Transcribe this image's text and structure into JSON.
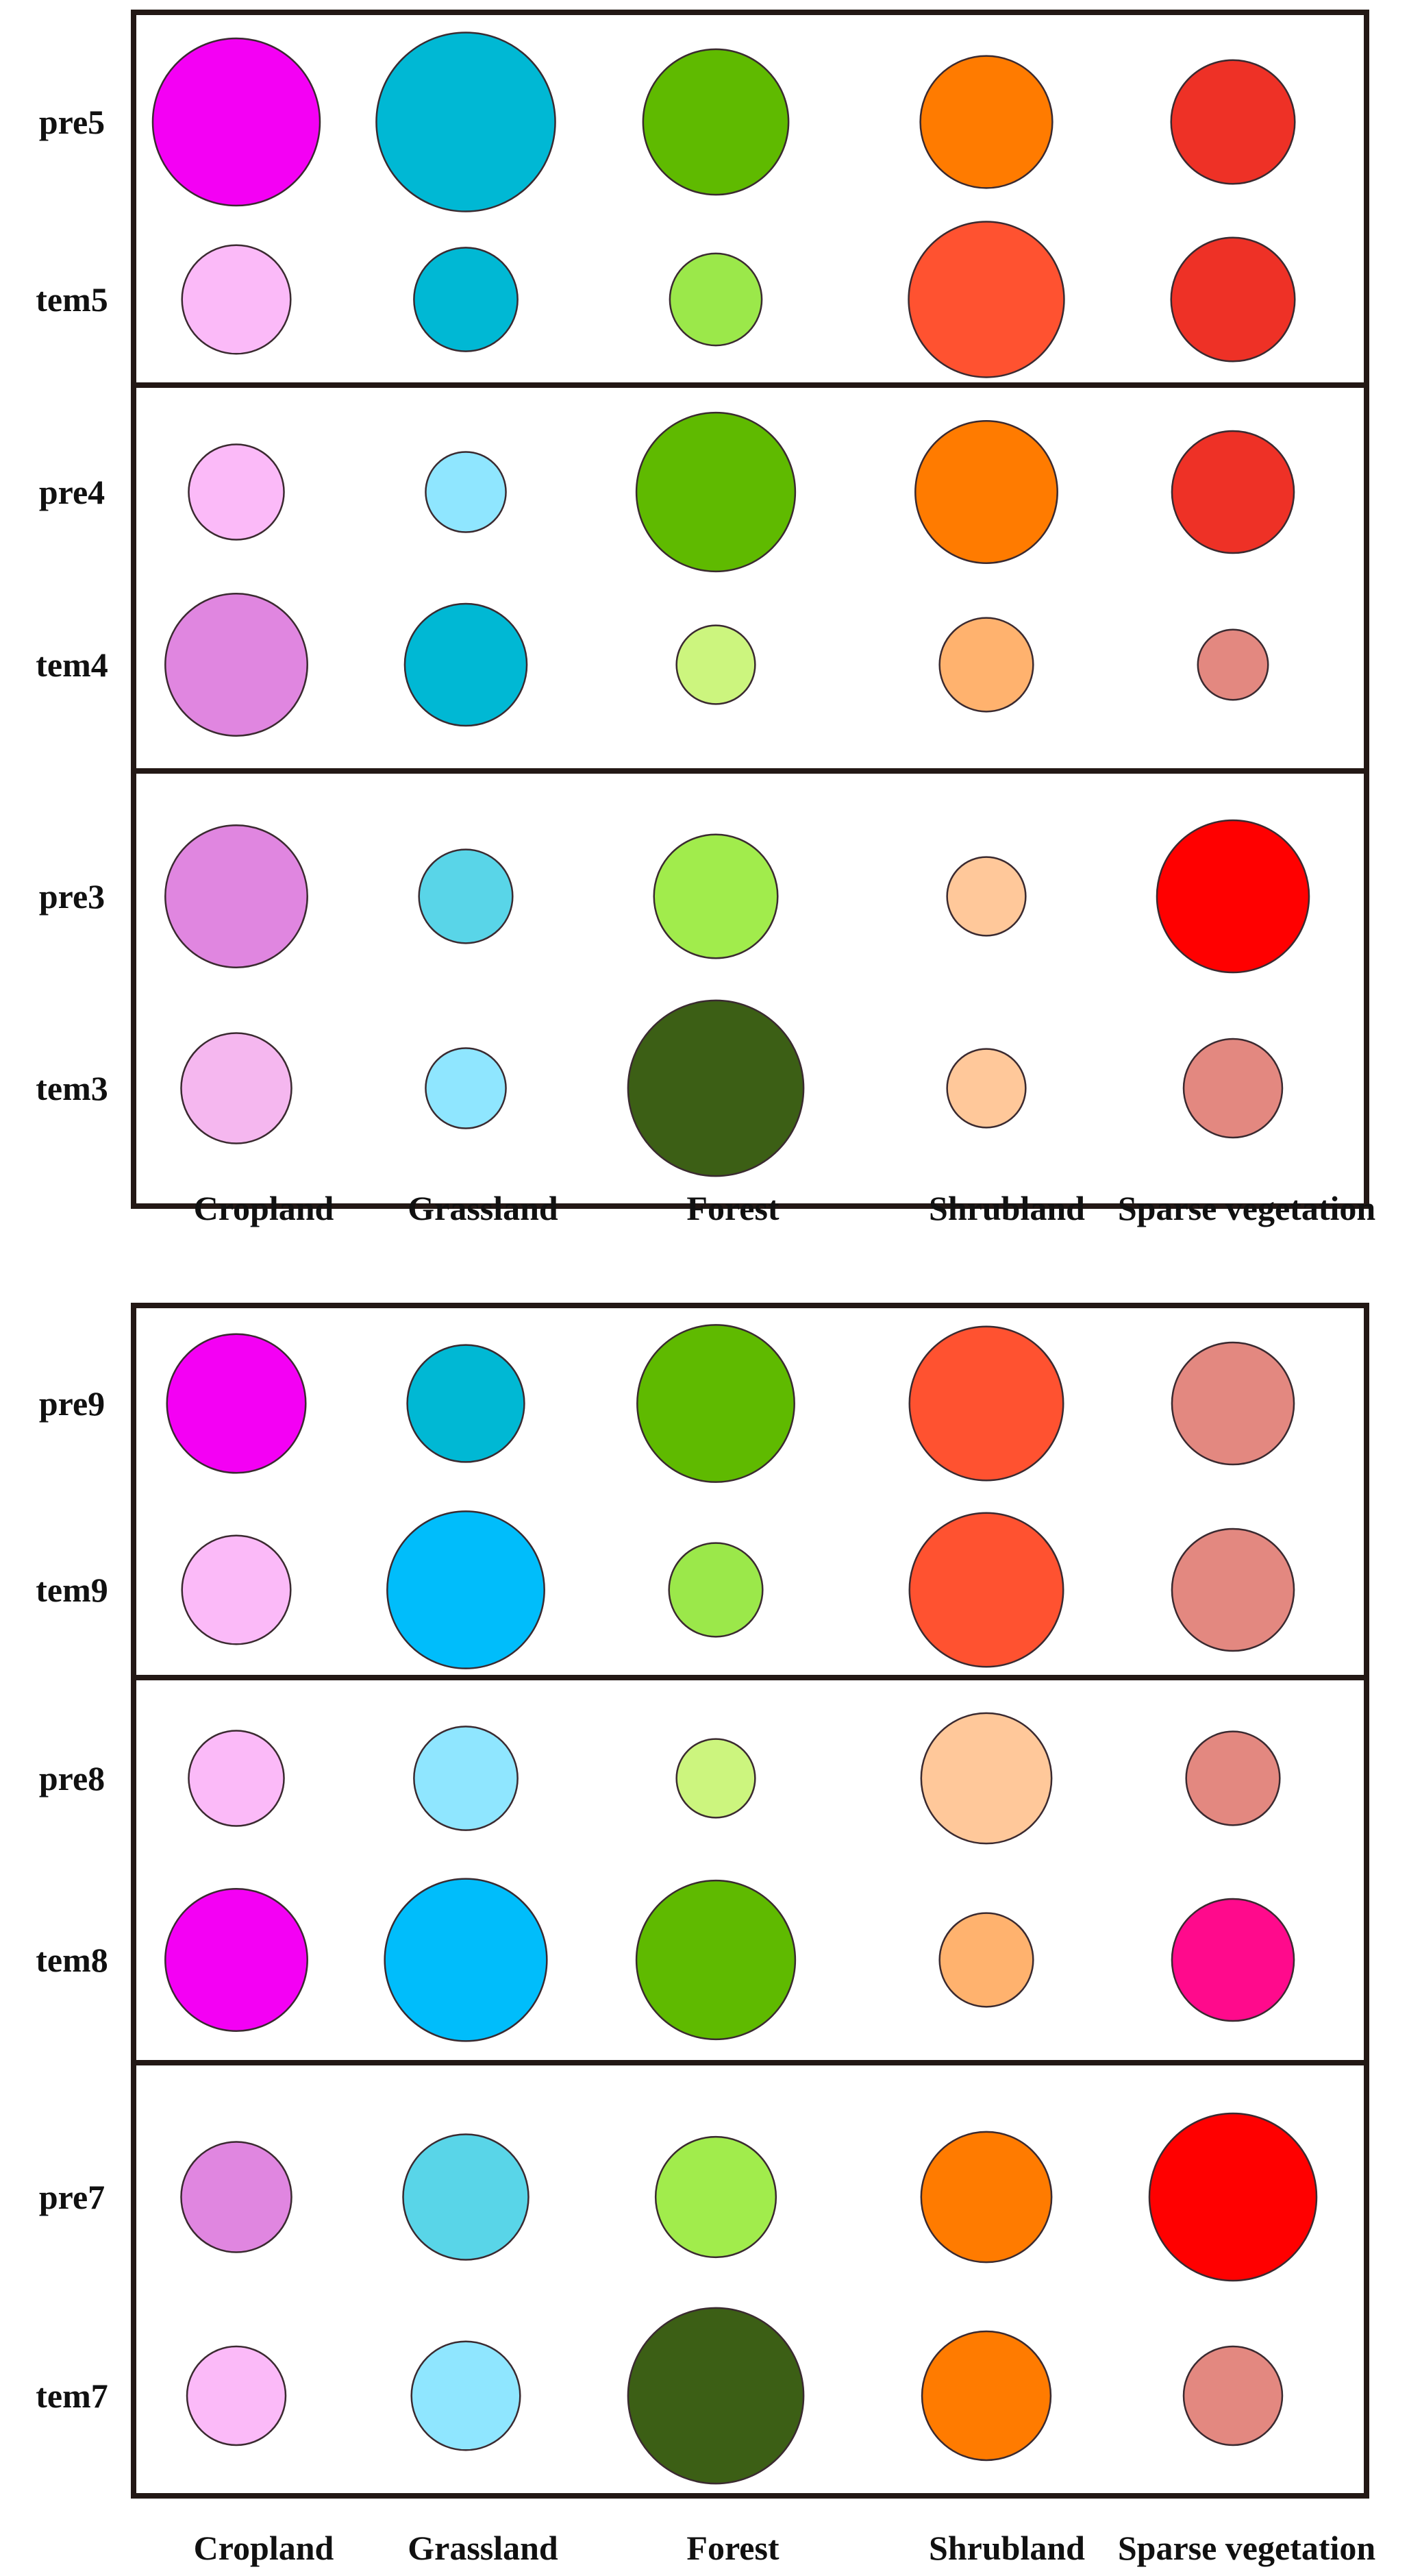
{
  "chart_data": [
    {
      "type": "bubble-matrix",
      "panel": "top",
      "categories": [
        "Cropland",
        "Grassland",
        "Forest",
        "Shrubland",
        "Sparse vegetation"
      ],
      "groups": [
        {
          "rows": [
            {
              "label": "pre5",
              "cells": [
                {
                  "r": 1.0,
                  "color": "#f400f4"
                },
                {
                  "r": 1.07,
                  "color": "#00b8d4"
                },
                {
                  "r": 0.87,
                  "color": "#5fba00"
                },
                {
                  "r": 0.79,
                  "color": "#ff7b00"
                },
                {
                  "r": 0.74,
                  "color": "#ee3126"
                }
              ]
            },
            {
              "label": "tem5",
              "cells": [
                {
                  "r": 0.65,
                  "color": "#fbbaf8"
                },
                {
                  "r": 0.62,
                  "color": "#00b8d4"
                },
                {
                  "r": 0.55,
                  "color": "#9be84a"
                },
                {
                  "r": 0.93,
                  "color": "#ff5230"
                },
                {
                  "r": 0.74,
                  "color": "#ee3126"
                }
              ]
            }
          ]
        },
        {
          "rows": [
            {
              "label": "pre4",
              "cells": [
                {
                  "r": 0.57,
                  "color": "#fbbaf8"
                },
                {
                  "r": 0.48,
                  "color": "#8fe6ff"
                },
                {
                  "r": 0.95,
                  "color": "#5fba00"
                },
                {
                  "r": 0.85,
                  "color": "#ff7b00"
                },
                {
                  "r": 0.73,
                  "color": "#ee3126"
                }
              ]
            },
            {
              "label": "tem4",
              "cells": [
                {
                  "r": 0.85,
                  "color": "#e086e0"
                },
                {
                  "r": 0.73,
                  "color": "#00b8d4"
                },
                {
                  "r": 0.47,
                  "color": "#ccf57e"
                },
                {
                  "r": 0.56,
                  "color": "#ffb26e"
                },
                {
                  "r": 0.42,
                  "color": "#e38880"
                }
              ]
            }
          ]
        },
        {
          "rows": [
            {
              "label": "pre3",
              "cells": [
                {
                  "r": 0.85,
                  "color": "#e086e0"
                },
                {
                  "r": 0.56,
                  "color": "#59d5e8"
                },
                {
                  "r": 0.74,
                  "color": "#a1ec4c"
                },
                {
                  "r": 0.47,
                  "color": "#ffc89a"
                },
                {
                  "r": 0.91,
                  "color": "#ff0000"
                }
              ]
            },
            {
              "label": "tem3",
              "cells": [
                {
                  "r": 0.66,
                  "color": "#f5b7ef"
                },
                {
                  "r": 0.48,
                  "color": "#8fe6ff"
                },
                {
                  "r": 1.05,
                  "color": "#3c5f15"
                },
                {
                  "r": 0.47,
                  "color": "#ffc89a"
                },
                {
                  "r": 0.59,
                  "color": "#e38880"
                }
              ]
            }
          ]
        }
      ]
    },
    {
      "type": "bubble-matrix",
      "panel": "bottom",
      "categories": [
        "Cropland",
        "Grassland",
        "Forest",
        "Shrubland",
        "Sparse vegetation"
      ],
      "groups": [
        {
          "rows": [
            {
              "label": "pre9",
              "cells": [
                {
                  "r": 0.83,
                  "color": "#f400f4"
                },
                {
                  "r": 0.7,
                  "color": "#00b8d4"
                },
                {
                  "r": 0.94,
                  "color": "#5fba00"
                },
                {
                  "r": 0.92,
                  "color": "#ff5230"
                },
                {
                  "r": 0.73,
                  "color": "#e38880"
                }
              ]
            },
            {
              "label": "tem9",
              "cells": [
                {
                  "r": 0.65,
                  "color": "#fbbaf8"
                },
                {
                  "r": 0.94,
                  "color": "#00bdfb"
                },
                {
                  "r": 0.56,
                  "color": "#9be84a"
                },
                {
                  "r": 0.92,
                  "color": "#ff5230"
                },
                {
                  "r": 0.73,
                  "color": "#e38880"
                }
              ]
            }
          ]
        },
        {
          "rows": [
            {
              "label": "pre8",
              "cells": [
                {
                  "r": 0.57,
                  "color": "#fbbaf8"
                },
                {
                  "r": 0.62,
                  "color": "#8fe6ff"
                },
                {
                  "r": 0.47,
                  "color": "#ccf57e"
                },
                {
                  "r": 0.78,
                  "color": "#ffc89a"
                },
                {
                  "r": 0.56,
                  "color": "#e38880"
                }
              ]
            },
            {
              "label": "tem8",
              "cells": [
                {
                  "r": 0.85,
                  "color": "#f400f4"
                },
                {
                  "r": 0.97,
                  "color": "#00bdfb"
                },
                {
                  "r": 0.95,
                  "color": "#5fba00"
                },
                {
                  "r": 0.56,
                  "color": "#ffb26e"
                },
                {
                  "r": 0.73,
                  "color": "#ff0a8c"
                }
              ]
            }
          ]
        },
        {
          "rows": [
            {
              "label": "pre7",
              "cells": [
                {
                  "r": 0.66,
                  "color": "#e086e0"
                },
                {
                  "r": 0.75,
                  "color": "#59d5e8"
                },
                {
                  "r": 0.72,
                  "color": "#a1ec4c"
                },
                {
                  "r": 0.78,
                  "color": "#ff7b00"
                },
                {
                  "r": 1.0,
                  "color": "#ff0000"
                }
              ]
            },
            {
              "label": "tem7",
              "cells": [
                {
                  "r": 0.59,
                  "color": "#fbbaf8"
                },
                {
                  "r": 0.65,
                  "color": "#8fe6ff"
                },
                {
                  "r": 1.05,
                  "color": "#3c5f15"
                },
                {
                  "r": 0.77,
                  "color": "#ff7b00"
                },
                {
                  "r": 0.59,
                  "color": "#e38880"
                }
              ]
            }
          ]
        }
      ]
    }
  ]
}
